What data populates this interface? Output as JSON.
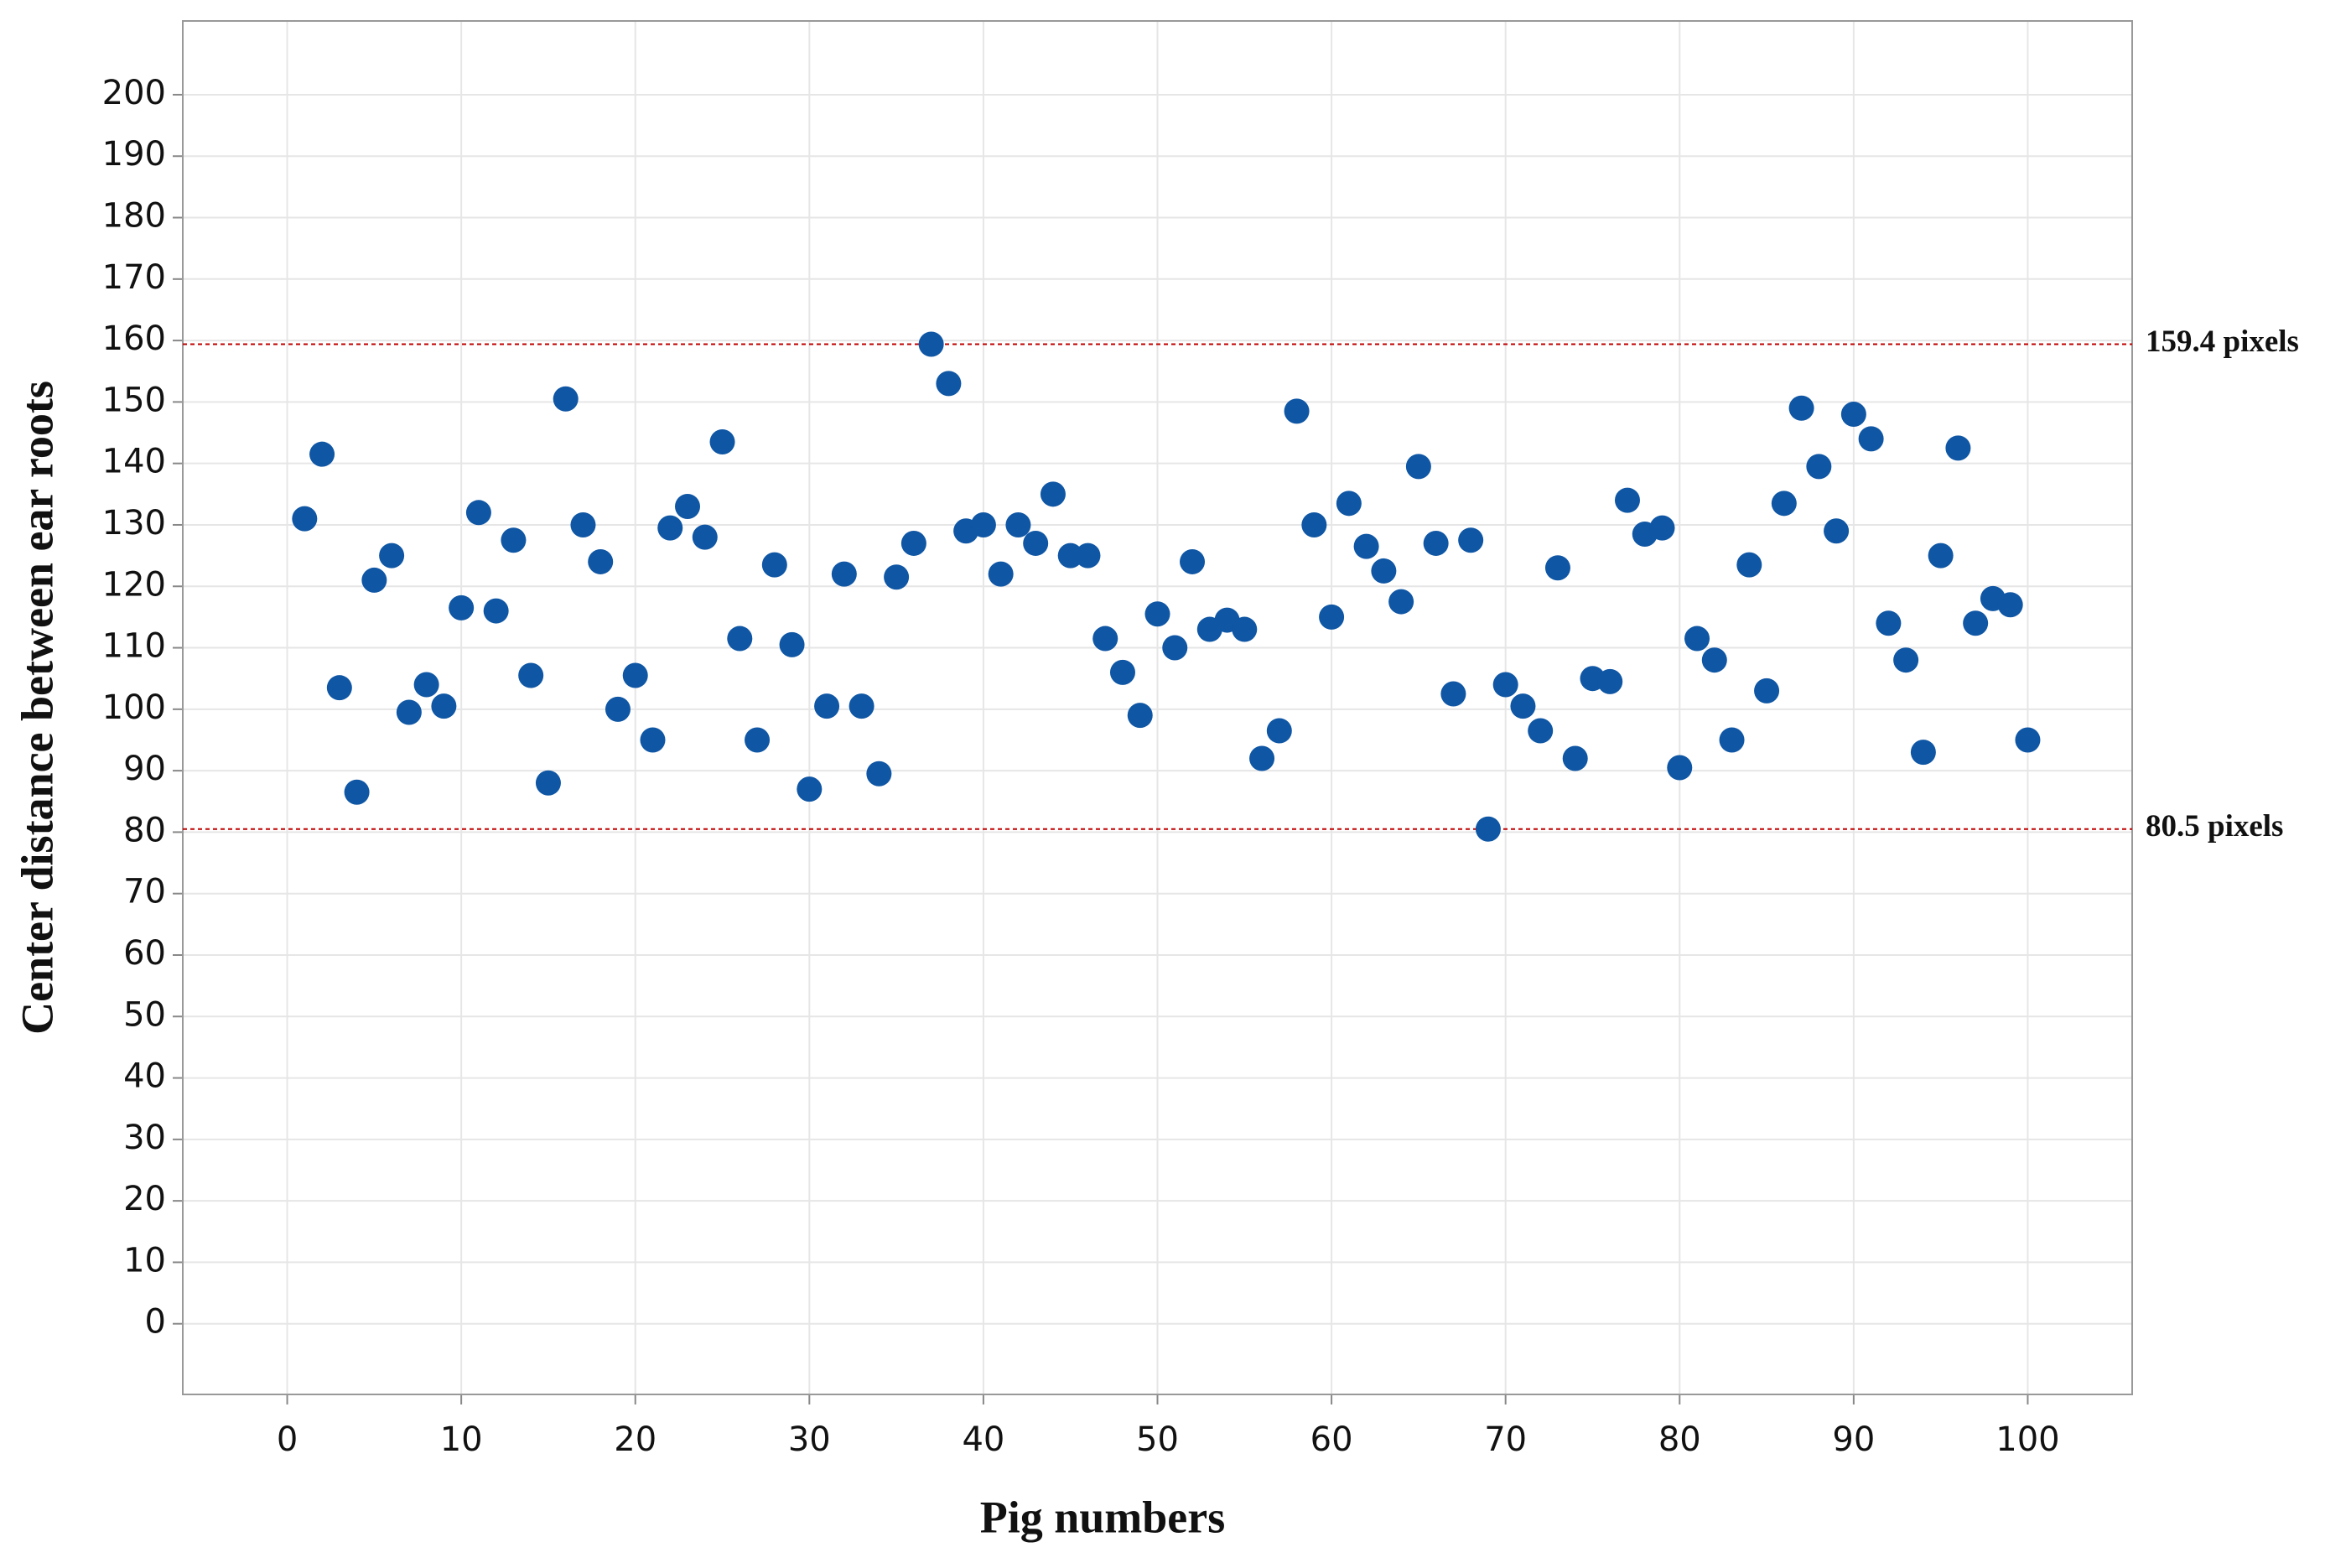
{
  "chart_data": {
    "type": "scatter",
    "x_label": "Pig numbers",
    "y_label": "Center distance between ear roots",
    "color": "#0f56a4",
    "grid": true,
    "xlim": [
      -6,
      106
    ],
    "ylim": [
      -11.5,
      212
    ],
    "xticks": [
      0,
      10,
      20,
      30,
      40,
      50,
      60,
      70,
      80,
      90,
      100
    ],
    "yticks": [
      0,
      10,
      20,
      30,
      40,
      50,
      60,
      70,
      80,
      90,
      100,
      110,
      120,
      130,
      140,
      150,
      160,
      170,
      180,
      190,
      200
    ],
    "reference_lines": [
      {
        "value": 159.4,
        "label": "159.4 pixels",
        "color": "#c00000"
      },
      {
        "value": 80.5,
        "label": "80.5 pixels",
        "color": "#c00000"
      }
    ],
    "x": [
      1,
      2,
      3,
      4,
      5,
      6,
      7,
      8,
      9,
      10,
      11,
      12,
      13,
      14,
      15,
      16,
      17,
      18,
      19,
      20,
      21,
      22,
      23,
      24,
      25,
      26,
      27,
      28,
      29,
      30,
      31,
      32,
      33,
      34,
      35,
      36,
      37,
      38,
      39,
      40,
      41,
      42,
      43,
      44,
      45,
      46,
      47,
      48,
      49,
      50,
      51,
      52,
      53,
      54,
      55,
      56,
      57,
      58,
      59,
      60,
      61,
      62,
      63,
      64,
      65,
      66,
      67,
      68,
      69,
      70,
      71,
      72,
      73,
      74,
      75,
      76,
      77,
      78,
      79,
      80,
      81,
      82,
      83,
      84,
      85,
      86,
      87,
      88,
      89,
      90,
      91,
      92,
      93,
      94,
      95,
      96,
      97,
      98,
      99,
      100
    ],
    "values": [
      131,
      141.5,
      103.5,
      86.5,
      121,
      125,
      99.5,
      104,
      100.5,
      116.5,
      132,
      116,
      127.5,
      105.5,
      88,
      150.5,
      130,
      124,
      100,
      105.5,
      95,
      129.5,
      133,
      128,
      143.5,
      111.5,
      95,
      123.5,
      110.5,
      87,
      100.5,
      122,
      100.5,
      89.5,
      121.5,
      127,
      159.4,
      153,
      129,
      130,
      122,
      130,
      127,
      135,
      125,
      125,
      111.5,
      106,
      99,
      115.5,
      110,
      124,
      113,
      114.5,
      113,
      92,
      96.5,
      148.5,
      130,
      115,
      133.5,
      126.5,
      122.5,
      117.5,
      139.5,
      127,
      102.5,
      127.5,
      80.5,
      104,
      100.5,
      96.5,
      123,
      92,
      105,
      104.5,
      134,
      128.5,
      129.5,
      90.5,
      111.5,
      108,
      95,
      123.5,
      103,
      133.5,
      149,
      139.5,
      129,
      148,
      144,
      114,
      108,
      93,
      125,
      142.5,
      114,
      118,
      117,
      95
    ]
  }
}
